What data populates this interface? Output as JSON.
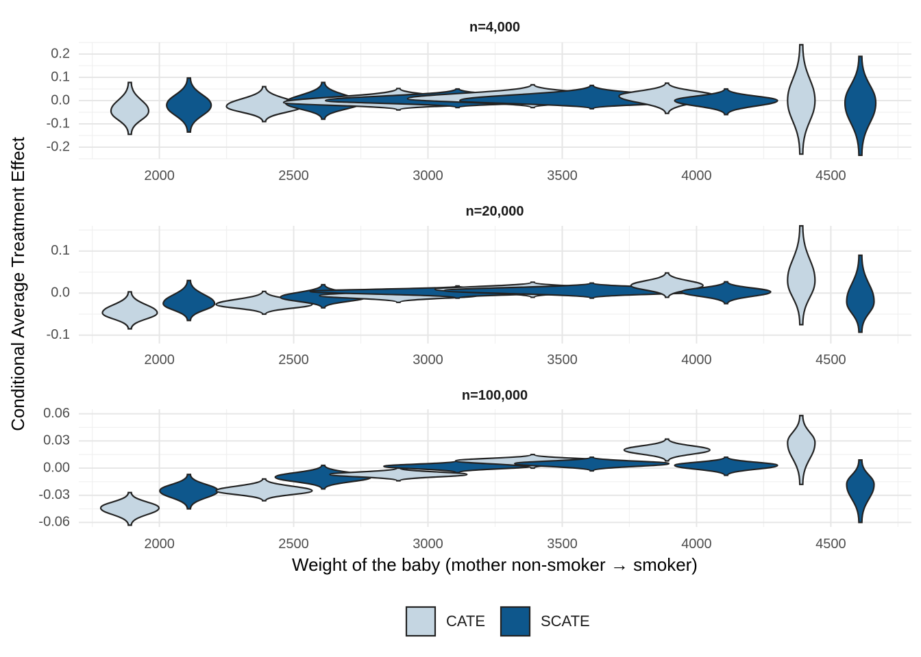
{
  "chart_data": {
    "type": "violin",
    "xlabel": "Weight of the baby (mother non-smoker → smoker)",
    "ylabel": "Conditional Average Treatment Effect",
    "legend": {
      "position": "bottom",
      "items": [
        {
          "label": "CATE",
          "color": "#c5d6e2"
        },
        {
          "label": "SCATE",
          "color": "#0e578c"
        }
      ]
    },
    "series_colors": {
      "CATE": "#c5d6e2",
      "SCATE": "#0e578c"
    },
    "xlim": [
      1700,
      4800
    ],
    "x_ticks": [
      "2000",
      "2500",
      "3000",
      "3500",
      "4000",
      "4500"
    ],
    "x_tick_values": [
      2000,
      2500,
      3000,
      3500,
      4000,
      4500
    ],
    "panels": [
      {
        "title": "n=4,000",
        "ylim": [
          -0.25,
          0.25
        ],
        "y_ticks": [
          "0.2",
          "0.1",
          "0.0",
          "-0.1",
          "-0.2"
        ],
        "y_tick_values": [
          0.2,
          0.1,
          0.0,
          -0.1,
          -0.2
        ],
        "violins": [
          {
            "series": "CATE",
            "x": 1890,
            "min": -0.145,
            "max": 0.078,
            "mode": -0.045,
            "width": 55
          },
          {
            "series": "SCATE",
            "x": 2110,
            "min": -0.135,
            "max": 0.097,
            "mode": -0.02,
            "width": 65
          },
          {
            "series": "CATE",
            "x": 2390,
            "min": -0.09,
            "max": 0.06,
            "mode": -0.025,
            "width": 110
          },
          {
            "series": "SCATE",
            "x": 2610,
            "min": -0.08,
            "max": 0.078,
            "mode": -0.01,
            "width": 110
          },
          {
            "series": "CATE",
            "x": 2890,
            "min": -0.04,
            "max": 0.052,
            "mode": -0.008,
            "width": 335
          },
          {
            "series": "SCATE",
            "x": 3110,
            "min": -0.03,
            "max": 0.05,
            "mode": 0.0,
            "width": 385
          },
          {
            "series": "CATE",
            "x": 3390,
            "min": -0.03,
            "max": 0.068,
            "mode": 0.008,
            "width": 365
          },
          {
            "series": "SCATE",
            "x": 3610,
            "min": -0.035,
            "max": 0.065,
            "mode": 0.0,
            "width": 385
          },
          {
            "series": "CATE",
            "x": 3890,
            "min": -0.055,
            "max": 0.075,
            "mode": 0.02,
            "width": 140
          },
          {
            "series": "SCATE",
            "x": 4110,
            "min": -0.06,
            "max": 0.05,
            "mode": 0.0,
            "width": 150
          },
          {
            "series": "CATE",
            "x": 4390,
            "min": -0.23,
            "max": 0.24,
            "mode": 0.0,
            "width": 40
          },
          {
            "series": "SCATE",
            "x": 4610,
            "min": -0.235,
            "max": 0.19,
            "mode": -0.01,
            "width": 45
          }
        ]
      },
      {
        "title": "n=20,000",
        "ylim": [
          -0.12,
          0.16
        ],
        "y_ticks": [
          "0.1",
          "0.0",
          "-0.1"
        ],
        "y_tick_values": [
          0.1,
          0.0,
          -0.1
        ],
        "violins": [
          {
            "series": "CATE",
            "x": 1890,
            "min": -0.085,
            "max": 0.003,
            "mode": -0.047,
            "width": 80
          },
          {
            "series": "SCATE",
            "x": 2110,
            "min": -0.065,
            "max": 0.03,
            "mode": -0.025,
            "width": 75
          },
          {
            "series": "CATE",
            "x": 2390,
            "min": -0.05,
            "max": 0.004,
            "mode": -0.027,
            "width": 140
          },
          {
            "series": "SCATE",
            "x": 2610,
            "min": -0.035,
            "max": 0.02,
            "mode": -0.01,
            "width": 125
          },
          {
            "series": "CATE",
            "x": 2890,
            "min": -0.022,
            "max": 0.01,
            "mode": -0.006,
            "width": 230
          },
          {
            "series": "SCATE",
            "x": 3110,
            "min": -0.012,
            "max": 0.017,
            "mode": 0.004,
            "width": 430
          },
          {
            "series": "CATE",
            "x": 3390,
            "min": -0.01,
            "max": 0.026,
            "mode": 0.009,
            "width": 285
          },
          {
            "series": "SCATE",
            "x": 3610,
            "min": -0.012,
            "max": 0.024,
            "mode": 0.006,
            "width": 430
          },
          {
            "series": "CATE",
            "x": 3890,
            "min": -0.01,
            "max": 0.048,
            "mode": 0.018,
            "width": 105
          },
          {
            "series": "SCATE",
            "x": 4110,
            "min": -0.025,
            "max": 0.027,
            "mode": 0.003,
            "width": 130
          },
          {
            "series": "CATE",
            "x": 4390,
            "min": -0.075,
            "max": 0.16,
            "mode": 0.03,
            "width": 40
          },
          {
            "series": "SCATE",
            "x": 4610,
            "min": -0.093,
            "max": 0.09,
            "mode": -0.02,
            "width": 40
          }
        ]
      },
      {
        "title": "n=100,000",
        "ylim": [
          -0.065,
          0.065
        ],
        "y_ticks": [
          "0.06",
          "0.03",
          "0.00",
          "-0.03",
          "-0.06"
        ],
        "y_tick_values": [
          0.06,
          0.03,
          0.0,
          -0.03,
          -0.06
        ],
        "violins": [
          {
            "series": "CATE",
            "x": 1890,
            "min": -0.063,
            "max": -0.027,
            "mode": -0.044,
            "width": 85
          },
          {
            "series": "SCATE",
            "x": 2110,
            "min": -0.045,
            "max": -0.007,
            "mode": -0.025,
            "width": 85
          },
          {
            "series": "CATE",
            "x": 2390,
            "min": -0.036,
            "max": -0.012,
            "mode": -0.025,
            "width": 140
          },
          {
            "series": "SCATE",
            "x": 2610,
            "min": -0.023,
            "max": 0.003,
            "mode": -0.01,
            "width": 140
          },
          {
            "series": "CATE",
            "x": 2890,
            "min": -0.014,
            "max": 0.0,
            "mode": -0.007,
            "width": 200
          },
          {
            "series": "SCATE",
            "x": 3110,
            "min": -0.005,
            "max": 0.008,
            "mode": 0.002,
            "width": 215
          },
          {
            "series": "CATE",
            "x": 3390,
            "min": 0.0,
            "max": 0.015,
            "mode": 0.008,
            "width": 225
          },
          {
            "series": "SCATE",
            "x": 3610,
            "min": -0.003,
            "max": 0.012,
            "mode": 0.005,
            "width": 225
          },
          {
            "series": "CATE",
            "x": 3890,
            "min": 0.008,
            "max": 0.032,
            "mode": 0.02,
            "width": 125
          },
          {
            "series": "SCATE",
            "x": 4110,
            "min": -0.008,
            "max": 0.012,
            "mode": 0.003,
            "width": 150
          },
          {
            "series": "CATE",
            "x": 4390,
            "min": -0.018,
            "max": 0.058,
            "mode": 0.028,
            "width": 40
          },
          {
            "series": "SCATE",
            "x": 4610,
            "min": -0.06,
            "max": 0.009,
            "mode": -0.018,
            "width": 40
          }
        ]
      }
    ]
  }
}
